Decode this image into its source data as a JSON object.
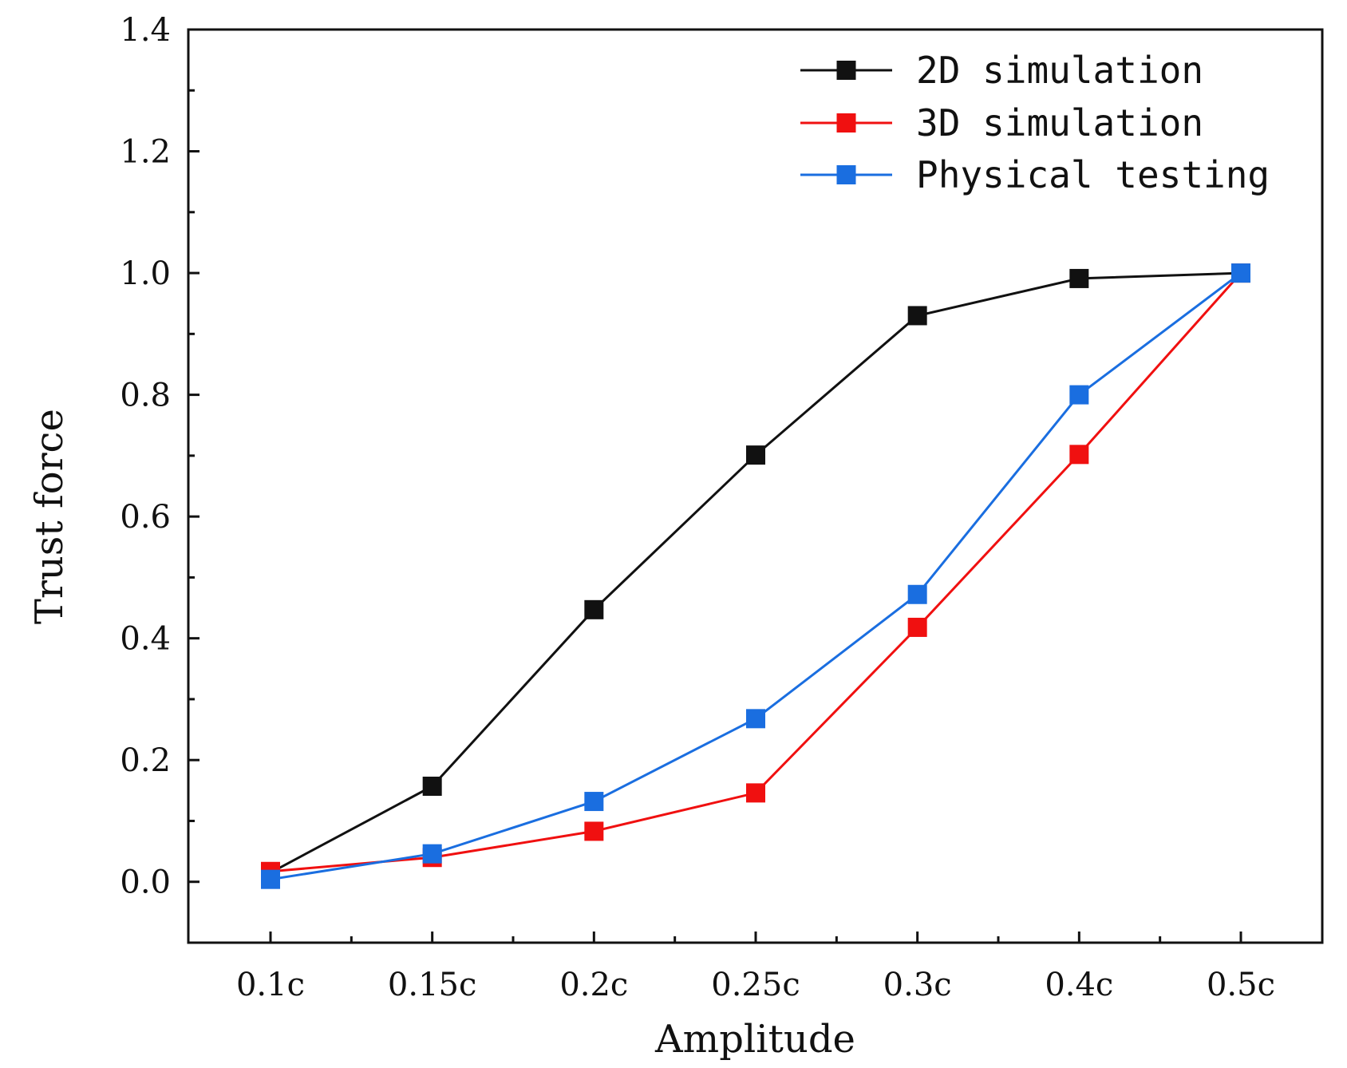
{
  "chart_data": {
    "type": "line",
    "title": "",
    "xlabel": "Amplitude",
    "ylabel": "Trust force",
    "categories": [
      "0.1c",
      "0.15c",
      "0.2c",
      "0.25c",
      "0.3c",
      "0.4c",
      "0.5c"
    ],
    "ylim": [
      -0.1,
      1.4
    ],
    "yticks": [
      "0.0",
      "0.2",
      "0.4",
      "0.6",
      "0.8",
      "1.0",
      "1.2",
      "1.4"
    ],
    "ytick_values": [
      0.0,
      0.2,
      0.4,
      0.6,
      0.8,
      1.0,
      1.2,
      1.4
    ],
    "grid": false,
    "legend_position": "top-right",
    "series": [
      {
        "name": "2D simulation",
        "color": "#111111",
        "marker": "square",
        "values": [
          0.015,
          0.157,
          0.447,
          0.701,
          0.93,
          0.991,
          1.0
        ]
      },
      {
        "name": "3D simulation",
        "color": "#f01010",
        "marker": "square",
        "values": [
          0.017,
          0.04,
          0.083,
          0.146,
          0.418,
          0.702,
          1.0
        ]
      },
      {
        "name": "Physical testing",
        "color": "#1a6ee0",
        "marker": "square",
        "values": [
          0.004,
          0.046,
          0.132,
          0.268,
          0.472,
          0.8,
          1.0
        ]
      }
    ]
  }
}
